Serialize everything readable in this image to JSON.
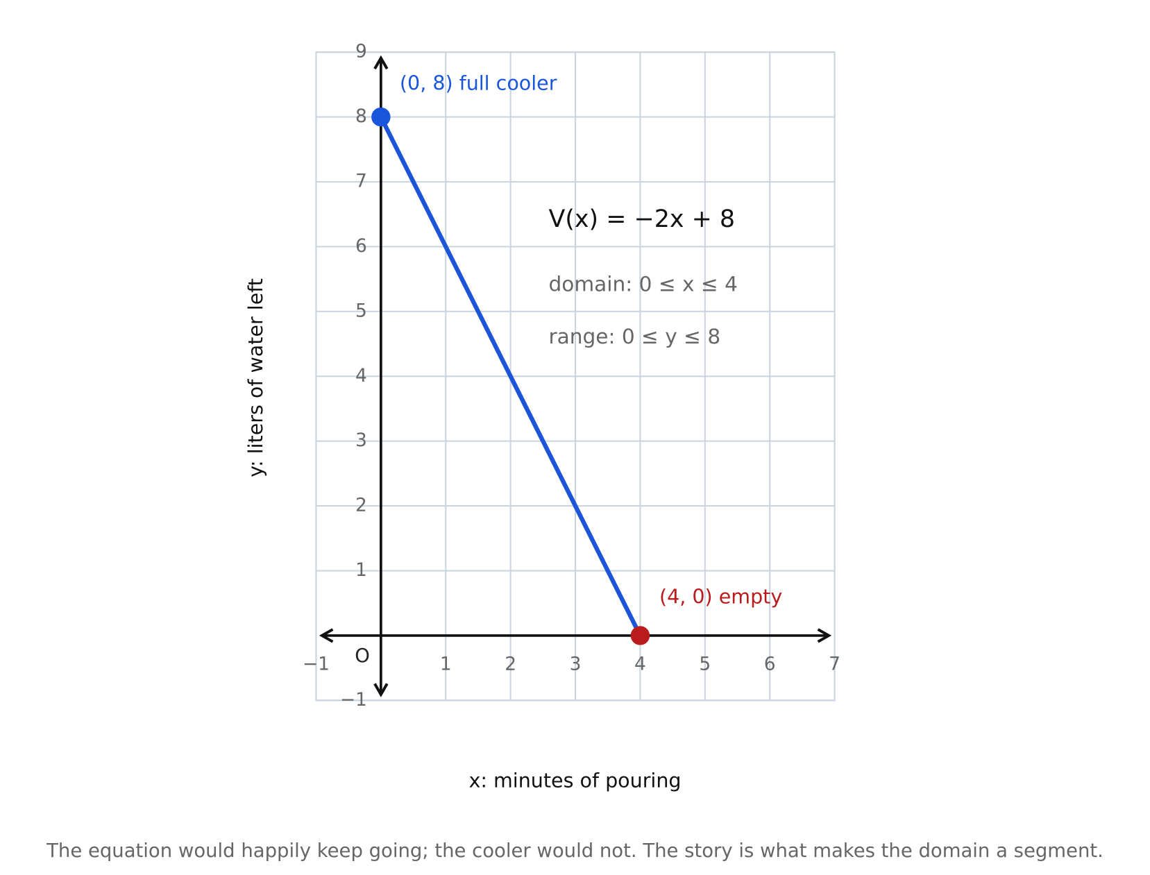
{
  "chart_data": {
    "type": "line",
    "x_label": "x: minutes of pouring",
    "y_label": "y: liters of water left",
    "x": [
      0,
      4
    ],
    "series": [
      {
        "name": "V(x) = −2x + 8",
        "color": "#1d55d9",
        "values": [
          8,
          0
        ]
      }
    ],
    "point_colors": [
      "#1a56db",
      "#b91c1c"
    ],
    "xlim": [
      -1,
      7
    ],
    "ylim": [
      -1,
      9
    ],
    "xticks": [
      {
        "value": -1,
        "label": "−1"
      },
      1,
      2,
      3,
      4,
      5,
      6,
      7
    ],
    "yticks": [
      {
        "value": -1,
        "label": "−1"
      },
      1,
      2,
      3,
      4,
      5,
      6,
      7,
      8,
      9
    ],
    "grid": true,
    "origin_label": "O",
    "annotations": {
      "start": "(0, 8) full cooler",
      "end": "(4, 0) empty",
      "equation": "V(x) = −2x + 8",
      "domain": "domain: 0 ≤ x ≤ 4",
      "range": "range: 0 ≤ y ≤ 8"
    },
    "caption": "The equation would happily keep going; the cooler would not. The story is what makes the domain a segment."
  }
}
